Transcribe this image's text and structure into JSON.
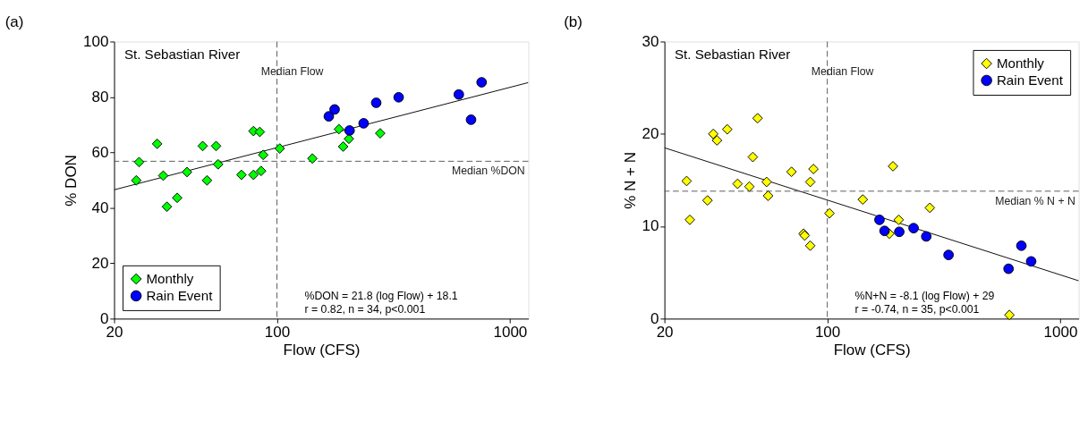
{
  "chart_data": [
    {
      "type": "scatter",
      "title": "(a)",
      "xlabel": "Flow (CFS)",
      "ylabel": "% DON",
      "log": "x",
      "xlim": [
        20,
        1200
      ],
      "xticks": [
        20,
        100,
        1000
      ],
      "ylim": [
        0,
        100
      ],
      "yticks": [
        0,
        20,
        40,
        60,
        80,
        100
      ],
      "grid": false,
      "legend": "bottom left",
      "series": [
        {
          "name": "Monthly",
          "type": "scatter",
          "marker": "diamond",
          "color": "#00ff00",
          "x": [
            24.9,
            25.6,
            30.6,
            32.5,
            33.7,
            37.3,
            41.1,
            48.0,
            50.1,
            54.8,
            55.9,
            70.4,
            79.3,
            79.3,
            84.4,
            85.5,
            87.3,
            102.8,
            142,
            184.5,
            192.4,
            203.6,
            277.5
          ],
          "values": [
            49.9,
            56.5,
            63.1,
            51.6,
            40.4,
            43.6,
            52.9,
            62.3,
            49.9,
            62.3,
            55.7,
            51.9,
            67.7,
            51.9,
            67.4,
            53.3,
            59.1,
            61.4,
            57.8,
            68.4,
            62.1,
            64.9,
            66.9
          ]
        },
        {
          "name": "Rain Event",
          "type": "scatter",
          "marker": "circle",
          "color": "#0000ff",
          "x": [
            167,
            176.8,
            205,
            235.5,
            266.7,
            333,
            603.5,
            681,
            756
          ],
          "values": [
            73.0,
            75.5,
            67.9,
            70.5,
            77.9,
            79.9,
            80.9,
            71.8,
            85.3
          ]
        },
        {
          "type": "line",
          "color": "#000000",
          "x": [
            20,
            1200
          ],
          "values": [
            46.5,
            85.2
          ]
        }
      ],
      "ref_lines": [
        {
          "axis": "x",
          "value": 100,
          "label": "Median Flow",
          "color": "#555555",
          "line_style": "dashed"
        },
        {
          "axis": "y",
          "value": 56.8,
          "label": "Median %DON",
          "color": "#555555",
          "line_style": "dashed"
        }
      ],
      "annotations": [
        "St. Sebastian River",
        "%DON = 21.8 (log Flow) + 18.1",
        "r = 0.82, n = 34, p<0.001"
      ]
    },
    {
      "type": "scatter",
      "title": "(b)",
      "xlabel": "Flow (CFS)",
      "ylabel": "% N + N",
      "log": "x",
      "xlim": [
        20,
        1200
      ],
      "xticks": [
        20,
        100,
        1000
      ],
      "ylim": [
        0,
        30
      ],
      "yticks": [
        0,
        10,
        20,
        30
      ],
      "grid": false,
      "legend": "top right",
      "series": [
        {
          "name": "Monthly",
          "type": "scatter",
          "marker": "diamond",
          "color": "#ffff00",
          "x": [
            24.9,
            25.7,
            30.6,
            32.4,
            33.6,
            37.2,
            41.2,
            46.3,
            47.9,
            50.2,
            54.9,
            55.7,
            70.2,
            79.1,
            80,
            84.5,
            84.5,
            87.2,
            102.2,
            142,
            191.4,
            202.5,
            184.6,
            275.5,
            605
          ],
          "values": [
            14.9,
            10.7,
            12.8,
            20.0,
            19.3,
            20.5,
            14.6,
            14.3,
            17.5,
            21.7,
            14.8,
            13.3,
            15.9,
            9.2,
            9.0,
            7.9,
            14.8,
            16.2,
            11.4,
            12.9,
            16.5,
            10.7,
            9.2,
            12.0,
            0.4
          ]
        },
        {
          "name": "Rain Event",
          "type": "scatter",
          "marker": "circle",
          "color": "#0000ff",
          "x": [
            167.5,
            176.1,
            203.7,
            234.7,
            266,
            331.5,
            600,
            681,
            750
          ],
          "values": [
            10.7,
            9.5,
            9.4,
            9.8,
            8.9,
            6.9,
            5.4,
            7.9,
            6.2
          ]
        },
        {
          "type": "line",
          "color": "#000000",
          "x": [
            20,
            1200
          ],
          "values": [
            18.5,
            4.1
          ]
        }
      ],
      "ref_lines": [
        {
          "axis": "x",
          "value": 100,
          "label": "Median Flow",
          "color": "#555555",
          "line_style": "dashed"
        },
        {
          "axis": "y",
          "value": 13.8,
          "label": "Median % N + N",
          "color": "#555555",
          "line_style": "dashed"
        }
      ],
      "annotations": [
        "St. Sebastian River",
        "%N+N = -8.1 (log Flow) + 29",
        "r = -0.74, n = 35, p<0.001"
      ]
    }
  ]
}
